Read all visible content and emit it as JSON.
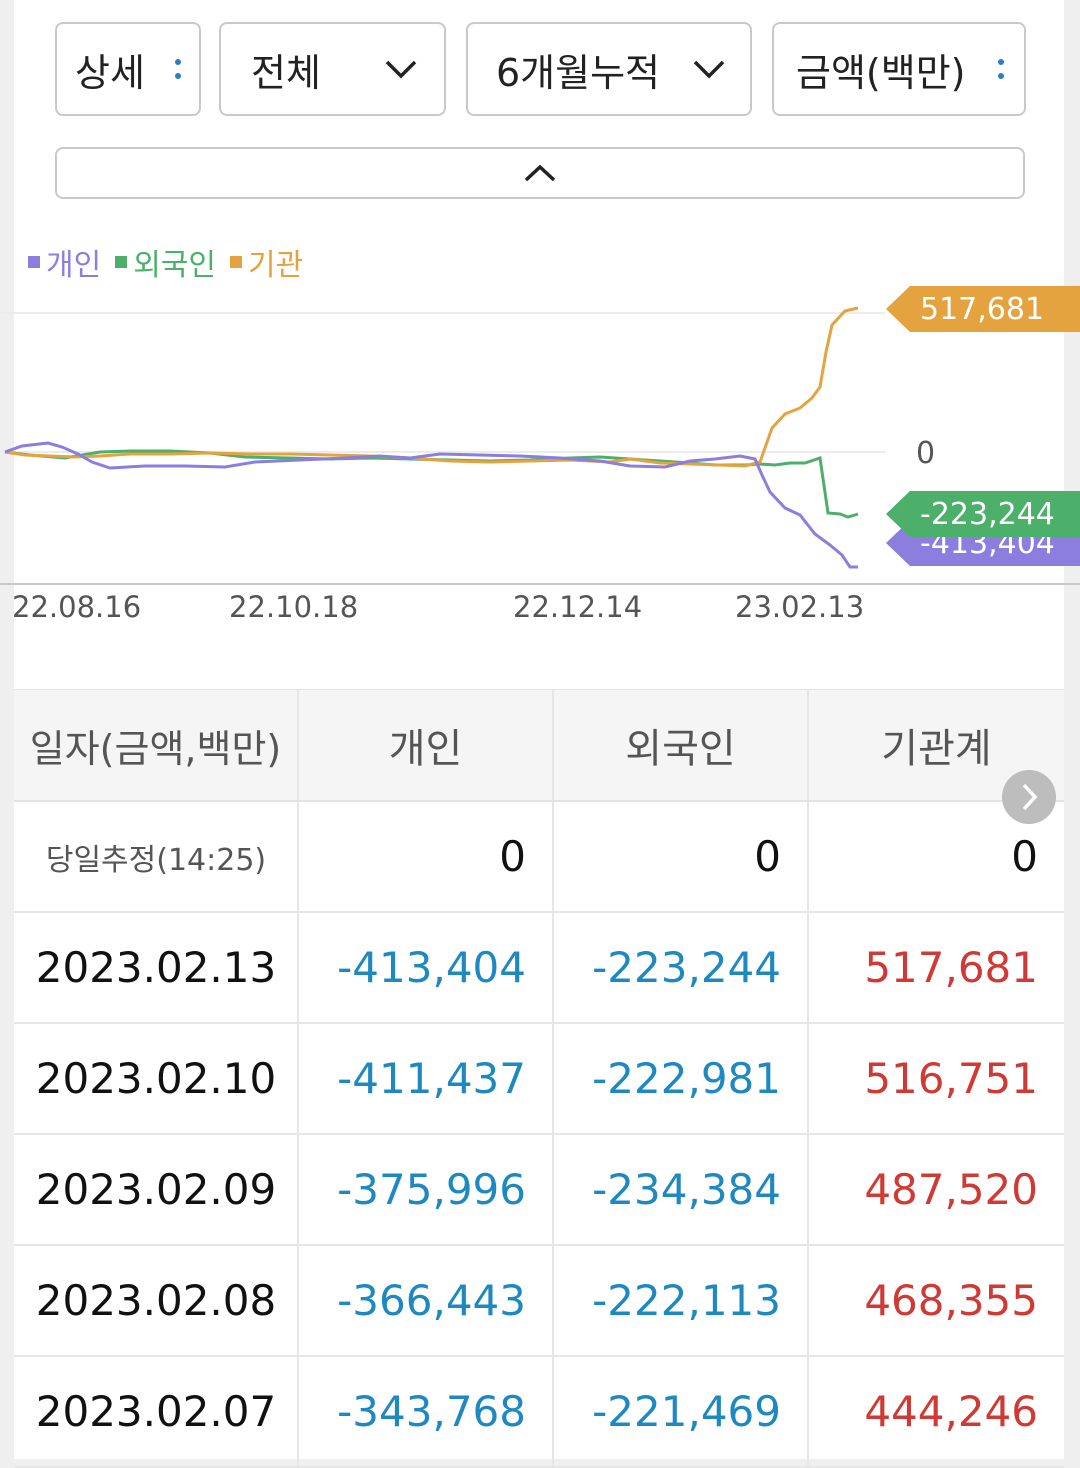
{
  "controls": {
    "detail": "상세",
    "scope": "전체",
    "period": "6개월누적",
    "unit": "금액(백만)"
  },
  "icons": {
    "kebab": "kebab-menu-icon",
    "chevron_down": "chevron-down-icon",
    "chevron_up": "chevron-up-icon",
    "next": "chevron-right-icon"
  },
  "legend": [
    {
      "label": "개인",
      "color": "#8c7ede"
    },
    {
      "label": "외국인",
      "color": "#4caf6a"
    },
    {
      "label": "기관",
      "color": "#e4a33e"
    }
  ],
  "chart_data": {
    "type": "line",
    "x_ticks": [
      "22.08.16",
      "22.10.18",
      "22.12.14",
      "23.02.13"
    ],
    "zero_label": "0",
    "series": [
      {
        "name": "개인",
        "color": "#8c7ede",
        "last_value": -413404,
        "last_label": "-413,404"
      },
      {
        "name": "외국인",
        "color": "#4caf6a",
        "last_value": -223244,
        "last_label": "-223,244"
      },
      {
        "name": "기관",
        "color": "#e4a33e",
        "last_value": 517681,
        "last_label": "517,681"
      }
    ]
  },
  "table": {
    "headers": [
      "일자(금액,백만)",
      "개인",
      "외국인",
      "기관계"
    ],
    "rows": [
      {
        "date": "당일추정(14:25)",
        "individual": "0",
        "foreign": "0",
        "institution": "0"
      },
      {
        "date": "2023.02.13",
        "individual": "-413,404",
        "foreign": "-223,244",
        "institution": "517,681"
      },
      {
        "date": "2023.02.10",
        "individual": "-411,437",
        "foreign": "-222,981",
        "institution": "516,751"
      },
      {
        "date": "2023.02.09",
        "individual": "-375,996",
        "foreign": "-234,384",
        "institution": "487,520"
      },
      {
        "date": "2023.02.08",
        "individual": "-366,443",
        "foreign": "-222,113",
        "institution": "468,355"
      },
      {
        "date": "2023.02.07",
        "individual": "-343,768",
        "foreign": "-221,469",
        "institution": "444,246"
      }
    ]
  }
}
